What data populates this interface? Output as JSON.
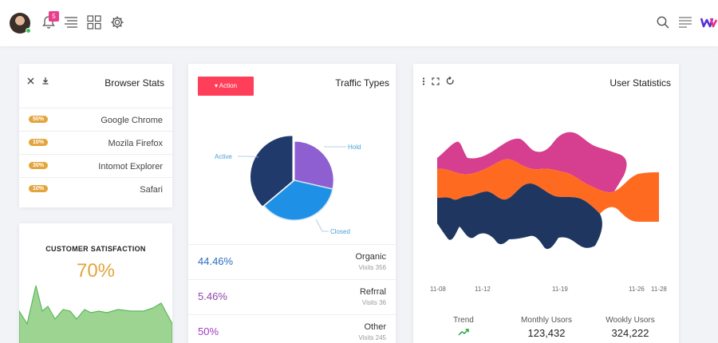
{
  "header": {
    "notifications_count": "5",
    "icons": [
      "avatar",
      "bell-icon",
      "menu-lines-icon",
      "grid-icon",
      "gear-icon",
      "search-icon",
      "list-icon",
      "brand-logo-icon"
    ]
  },
  "browser_stats": {
    "title": "Browser Stats",
    "rows": [
      {
        "pct": "50%",
        "name": "Google Chrome"
      },
      {
        "pct": "10%",
        "name": "Mozila Firefox"
      },
      {
        "pct": "30%",
        "name": "Intomot Explorer"
      },
      {
        "pct": "10%",
        "name": "Safari"
      }
    ]
  },
  "customer_satisfaction": {
    "title": "CUSTOMER SATISFACTION",
    "value": "70%"
  },
  "traffic_types": {
    "title": "Traffic Types",
    "action_label": "Action",
    "pie_labels": {
      "active": "Active",
      "hold": "Hold",
      "closed": "Closed"
    },
    "rows": [
      {
        "pct": "44.46%",
        "name": "Organic",
        "visits": "Visits 356",
        "color": "#2a6ebf"
      },
      {
        "pct": "5.46%",
        "name": "Refrral",
        "visits": "Visits 36",
        "color": "#8e44ad"
      },
      {
        "pct": "50%",
        "name": "Other",
        "visits": "Visits 245",
        "color": "#9b3fc4"
      }
    ]
  },
  "user_statistics": {
    "title": "User Statistics",
    "x_labels": [
      "11-08",
      "11-12",
      "11-19",
      "11-26",
      "11-28"
    ],
    "stats": [
      {
        "label": "Trend",
        "value": ""
      },
      {
        "label": "Monthly Usors",
        "value": "123,432"
      },
      {
        "label": "Wookly Usors",
        "value": "324,222"
      }
    ]
  },
  "colors": {
    "accent_red": "#ff3e5a",
    "pill_orange": "#e3a53c",
    "pie_navy": "#1f3a6b",
    "pie_purple": "#8e5fd1",
    "pie_blue": "#1e90e6",
    "stream_pink": "#d63f8f",
    "stream_orange": "#ff6a21",
    "stream_navy": "#1f3660",
    "spark_green": "#9ed492"
  }
}
